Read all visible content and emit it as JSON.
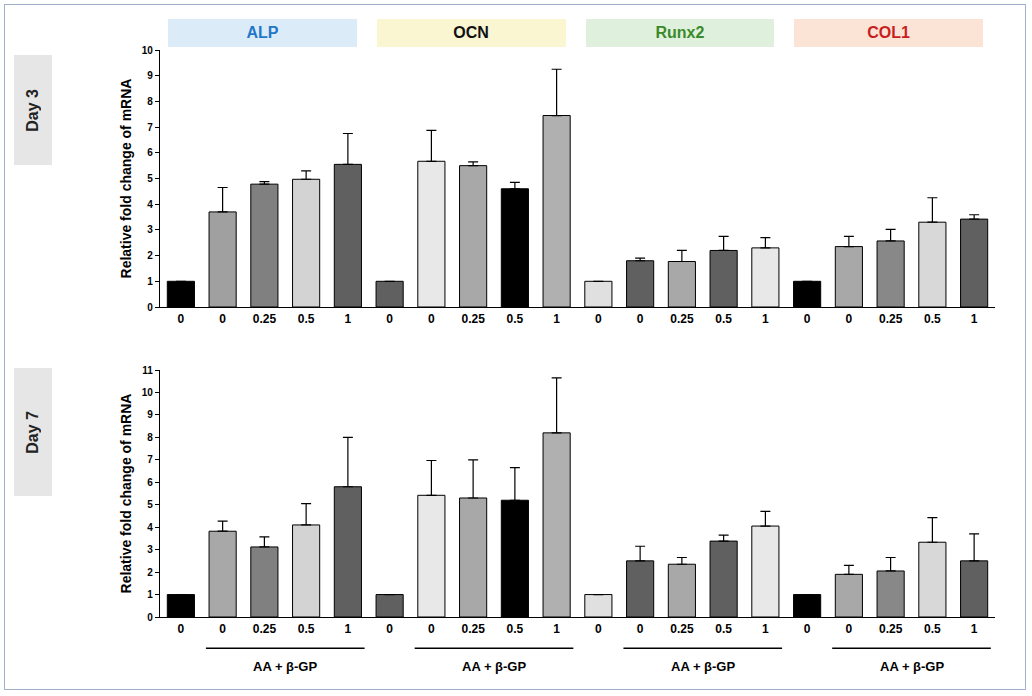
{
  "row_labels": [
    "Day 3",
    "Day 7"
  ],
  "chart_data": [
    {
      "type": "bar",
      "title": "ALP",
      "y_label": "Relative fold change of mRNA",
      "categories": [
        "0",
        "0",
        "0.25",
        "0.5",
        "1"
      ],
      "values": [
        1,
        3.7,
        4.78,
        4.97,
        5.55
      ],
      "error": [
        0,
        0.95,
        0.1,
        0.33,
        1.2
      ],
      "colors": [
        "#000000",
        "#a0a0a0",
        "#808080",
        "#d3d3d3",
        "#606060"
      ],
      "ylim": [
        0,
        10
      ],
      "yticks": [
        0,
        1,
        2,
        3,
        4,
        5,
        6,
        7,
        8,
        9,
        10
      ],
      "grid": false
    },
    {
      "type": "bar",
      "title": "OCN",
      "categories": [
        "0",
        "0",
        "0.25",
        "0.5",
        "1"
      ],
      "values": [
        1,
        5.67,
        5.5,
        4.6,
        7.45
      ],
      "error": [
        0,
        1.2,
        0.15,
        0.25,
        1.8
      ],
      "colors": [
        "#606060",
        "#e8e8e8",
        "#a8a8a8",
        "#000000",
        "#b0b0b0"
      ],
      "ylim": [
        0,
        10
      ],
      "tick_labels": "x",
      "grid": false
    },
    {
      "type": "bar",
      "title": "Runx2",
      "categories": [
        "0",
        "0",
        "0.25",
        "0.5",
        "1"
      ],
      "values": [
        1,
        1.8,
        1.77,
        2.2,
        2.3
      ],
      "error": [
        0,
        0.1,
        0.43,
        0.55,
        0.4
      ],
      "colors": [
        "#e0e0e0",
        "#606060",
        "#a8a8a8",
        "#606060",
        "#e8e8e8"
      ],
      "ylim": [
        0,
        10
      ],
      "tick_labels": "x",
      "grid": false
    },
    {
      "type": "bar",
      "title": "COL1",
      "categories": [
        "0",
        "0",
        "0.25",
        "0.5",
        "1"
      ],
      "values": [
        1,
        2.35,
        2.57,
        3.3,
        3.42
      ],
      "error": [
        0,
        0.4,
        0.45,
        0.95,
        0.17
      ],
      "colors": [
        "#000000",
        "#a8a8a8",
        "#888888",
        "#d8d8d8",
        "#606060"
      ],
      "ylim": [
        0,
        10
      ],
      "tick_labels": "x",
      "grid": false
    },
    {
      "type": "bar",
      "y_label": "Relative fold change of mRNA",
      "annotations": [
        "AA + β-GP"
      ],
      "categories": [
        "0",
        "0",
        "0.25",
        "0.5",
        "1"
      ],
      "values": [
        1,
        3.82,
        3.12,
        4.1,
        5.8
      ],
      "error": [
        0,
        0.45,
        0.45,
        0.95,
        2.2
      ],
      "colors": [
        "#000000",
        "#a8a8a8",
        "#808080",
        "#d3d3d3",
        "#606060"
      ],
      "ylim": [
        0,
        11
      ],
      "yticks": [
        0,
        1,
        2,
        3,
        4,
        5,
        6,
        7,
        8,
        9,
        10,
        11
      ],
      "grid": false
    },
    {
      "type": "bar",
      "annotations": [
        "AA + β-GP"
      ],
      "categories": [
        "0",
        "0",
        "0.25",
        "0.5",
        "1"
      ],
      "values": [
        1,
        5.42,
        5.3,
        5.2,
        8.2
      ],
      "error": [
        0,
        1.55,
        1.7,
        1.45,
        2.45
      ],
      "colors": [
        "#606060",
        "#e8e8e8",
        "#a8a8a8",
        "#000000",
        "#b0b0b0"
      ],
      "ylim": [
        0,
        11
      ],
      "tick_labels": "x",
      "grid": false
    },
    {
      "type": "bar",
      "annotations": [
        "AA + β-GP"
      ],
      "categories": [
        "0",
        "0",
        "0.25",
        "0.5",
        "1"
      ],
      "values": [
        1,
        2.5,
        2.35,
        3.38,
        4.05
      ],
      "error": [
        0,
        0.65,
        0.3,
        0.27,
        0.65
      ],
      "colors": [
        "#e0e0e0",
        "#606060",
        "#a8a8a8",
        "#606060",
        "#e8e8e8"
      ],
      "ylim": [
        0,
        11
      ],
      "tick_labels": "x",
      "grid": false
    },
    {
      "type": "bar",
      "annotations": [
        "AA + β-GP"
      ],
      "categories": [
        "0",
        "0",
        "0.25",
        "0.5",
        "1"
      ],
      "values": [
        1,
        1.9,
        2.05,
        3.33,
        2.5
      ],
      "error": [
        0,
        0.4,
        0.6,
        1.1,
        1.2
      ],
      "colors": [
        "#000000",
        "#a8a8a8",
        "#888888",
        "#d8d8d8",
        "#606060"
      ],
      "ylim": [
        0,
        11
      ],
      "tick_labels": "x",
      "grid": false
    }
  ]
}
